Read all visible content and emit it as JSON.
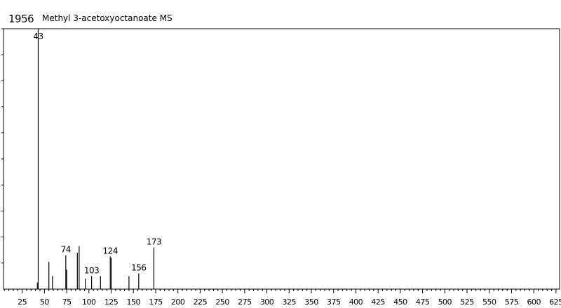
{
  "header": {
    "id": "1956",
    "title": "Methyl 3-acetoxyoctanoate MS"
  },
  "chart_data": {
    "type": "bar",
    "title": "Methyl 3-acetoxyoctanoate MS",
    "xlabel": "",
    "ylabel": "",
    "xlim": [
      4,
      629
    ],
    "ylim": [
      0,
      100
    ],
    "x_ticks": [
      25,
      50,
      75,
      100,
      125,
      150,
      175,
      200,
      225,
      250,
      275,
      300,
      325,
      350,
      375,
      400,
      425,
      450,
      475,
      500,
      525,
      550,
      575,
      600,
      625
    ],
    "x_tick_labels": [
      "25",
      "50",
      "75",
      "100",
      "125",
      "150",
      "175",
      "200",
      "225",
      "250",
      "275",
      "300",
      "325",
      "350",
      "375",
      "400",
      "425",
      "450",
      "475",
      "500",
      "525",
      "550",
      "575",
      "600",
      "625"
    ],
    "peaks": {
      "mz": [
        42,
        43,
        55,
        59,
        74,
        75,
        87,
        89,
        96,
        103,
        113,
        124,
        125,
        145,
        156,
        173
      ],
      "intensity": [
        2.5,
        100,
        10.5,
        5,
        13,
        7.5,
        14,
        16.5,
        4,
        5,
        5,
        12.5,
        12,
        5,
        6,
        16
      ]
    },
    "peak_labels": [
      {
        "mz": 43,
        "label": "43"
      },
      {
        "mz": 74,
        "label": "74"
      },
      {
        "mz": 103,
        "label": "103"
      },
      {
        "mz": 124,
        "label": "124"
      },
      {
        "mz": 156,
        "label": "156"
      },
      {
        "mz": 173,
        "label": "173"
      }
    ],
    "grid": false
  }
}
